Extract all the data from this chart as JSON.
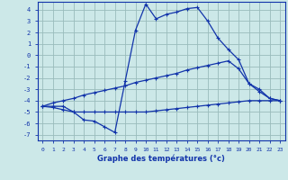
{
  "xlabel": "Graphe des températures (°c)",
  "bg_color": "#cce8e8",
  "grid_color": "#99bbbb",
  "line_color": "#1133aa",
  "hours": [
    0,
    1,
    2,
    3,
    4,
    5,
    6,
    7,
    8,
    9,
    10,
    11,
    12,
    13,
    14,
    15,
    16,
    17,
    18,
    19,
    20,
    21,
    22,
    23
  ],
  "temp_curve": [
    -4.5,
    -4.5,
    -4.5,
    -5.0,
    -5.7,
    -5.8,
    -6.3,
    -6.8,
    -2.3,
    2.2,
    4.5,
    3.2,
    3.6,
    3.8,
    4.1,
    4.2,
    3.0,
    1.5,
    0.5,
    -0.4,
    -2.5,
    -3.0,
    -3.8,
    -4.0
  ],
  "mean_line": [
    -4.5,
    -4.2,
    -4.0,
    -3.8,
    -3.5,
    -3.3,
    -3.1,
    -2.9,
    -2.7,
    -2.4,
    -2.2,
    -2.0,
    -1.8,
    -1.6,
    -1.3,
    -1.1,
    -0.9,
    -0.7,
    -0.5,
    -1.2,
    -2.5,
    -3.2,
    -3.8,
    -4.0
  ],
  "flat_line": [
    -4.5,
    -4.6,
    -4.8,
    -5.0,
    -5.0,
    -5.0,
    -5.0,
    -5.0,
    -5.0,
    -5.0,
    -5.0,
    -4.9,
    -4.8,
    -4.7,
    -4.6,
    -4.5,
    -4.4,
    -4.3,
    -4.2,
    -4.1,
    -4.0,
    -4.0,
    -4.0,
    -4.0
  ],
  "ylim": [
    -7.5,
    4.7
  ],
  "yticks": [
    -7,
    -6,
    -5,
    -4,
    -3,
    -2,
    -1,
    0,
    1,
    2,
    3,
    4
  ],
  "xticks": [
    0,
    1,
    2,
    3,
    4,
    5,
    6,
    7,
    8,
    9,
    10,
    11,
    12,
    13,
    14,
    15,
    16,
    17,
    18,
    19,
    20,
    21,
    22,
    23
  ],
  "marker": "+",
  "markersize": 3,
  "linewidth": 0.9
}
